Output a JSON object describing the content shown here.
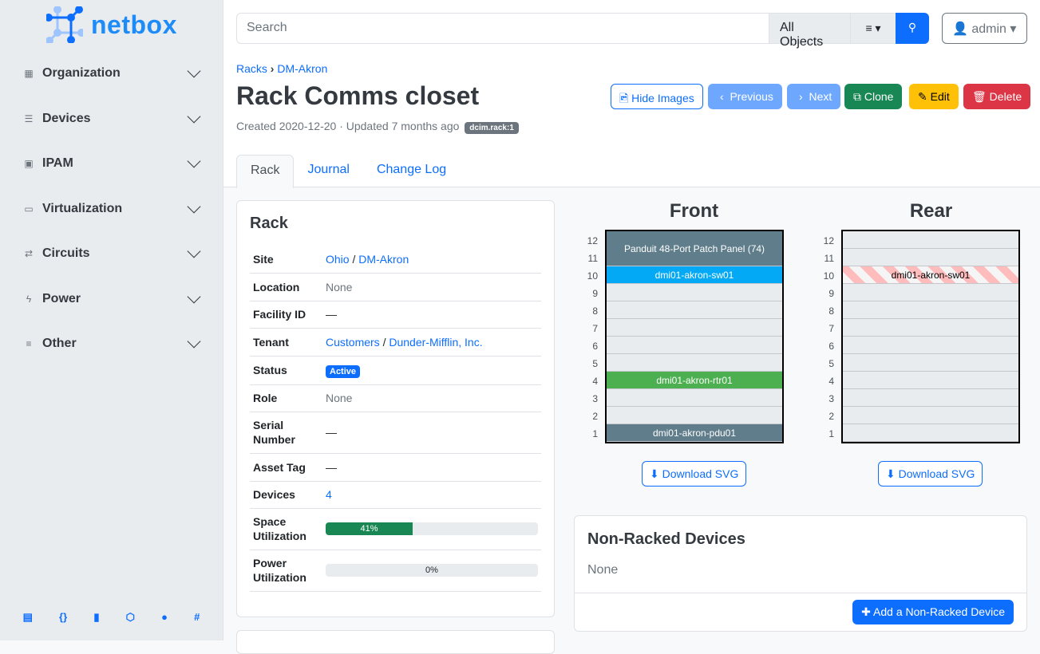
{
  "brand": "netbox",
  "sidebar": {
    "items": [
      {
        "label": "Organization",
        "icon": "domain-icon"
      },
      {
        "label": "Devices",
        "icon": "server-icon"
      },
      {
        "label": "IPAM",
        "icon": "counter-icon"
      },
      {
        "label": "Virtualization",
        "icon": "monitor-icon"
      },
      {
        "label": "Circuits",
        "icon": "transit-icon"
      },
      {
        "label": "Power",
        "icon": "flash-icon"
      },
      {
        "label": "Other",
        "icon": "notes-icon"
      }
    ],
    "footer_icons": [
      "book-icon",
      "api-icon",
      "bookmark-icon",
      "graphql-icon",
      "github-icon",
      "slack-icon"
    ]
  },
  "search": {
    "placeholder": "Search",
    "scope": "All Objects"
  },
  "user": {
    "name": "admin"
  },
  "breadcrumb": [
    "Racks",
    "DM-Akron"
  ],
  "page": {
    "title": "Rack Comms closet",
    "meta": "Created 2020-12-20 · Updated 7 months ago",
    "tag": "dcim.rack:1"
  },
  "buttons": {
    "hide_images": "Hide Images",
    "previous": "Previous",
    "next": "Next",
    "clone": "Clone",
    "edit": "Edit",
    "delete": "Delete"
  },
  "tabs": [
    "Rack",
    "Journal",
    "Change Log"
  ],
  "rack_card": {
    "title": "Rack",
    "site": [
      "Ohio",
      "DM-Akron"
    ],
    "location": "None",
    "facility_id": "—",
    "tenant": [
      "Customers",
      "Dunder-Mifflin, Inc."
    ],
    "status": "Active",
    "role": "None",
    "serial": "—",
    "asset_tag": "—",
    "devices": "4",
    "space_util": 41,
    "space_util_label": "41%",
    "power_util": 0,
    "power_util_label": "0%",
    "labels": {
      "site": "Site",
      "location": "Location",
      "facility": "Facility ID",
      "tenant": "Tenant",
      "status": "Status",
      "role": "Role",
      "serial": "Serial Number",
      "asset": "Asset Tag",
      "devices": "Devices",
      "space": "Space Utilization",
      "power": "Power Utilization"
    }
  },
  "elevation": {
    "front_title": "Front",
    "rear_title": "Rear",
    "download": "Download SVG",
    "units": [
      12,
      11,
      10,
      9,
      8,
      7,
      6,
      5,
      4,
      3,
      2,
      1
    ],
    "front": [
      {
        "name": "Panduit 48-Port Patch Panel (74)",
        "top": 12,
        "height": 2,
        "color": "#607d8b"
      },
      {
        "name": "dmi01-akron-sw01",
        "top": 10,
        "height": 1,
        "color": "#03a9f4"
      },
      {
        "name": "dmi01-akron-rtr01",
        "top": 4,
        "height": 1,
        "color": "#4caf50"
      },
      {
        "name": "dmi01-akron-pdu01",
        "top": 1,
        "height": 1,
        "color": "#607d8b"
      }
    ],
    "rear": [
      {
        "name": "dmi01-akron-sw01",
        "top": 10,
        "height": 1,
        "color": "striped"
      }
    ]
  },
  "non_racked": {
    "title": "Non-Racked Devices",
    "value": "None",
    "add": "Add a Non-Racked Device"
  }
}
